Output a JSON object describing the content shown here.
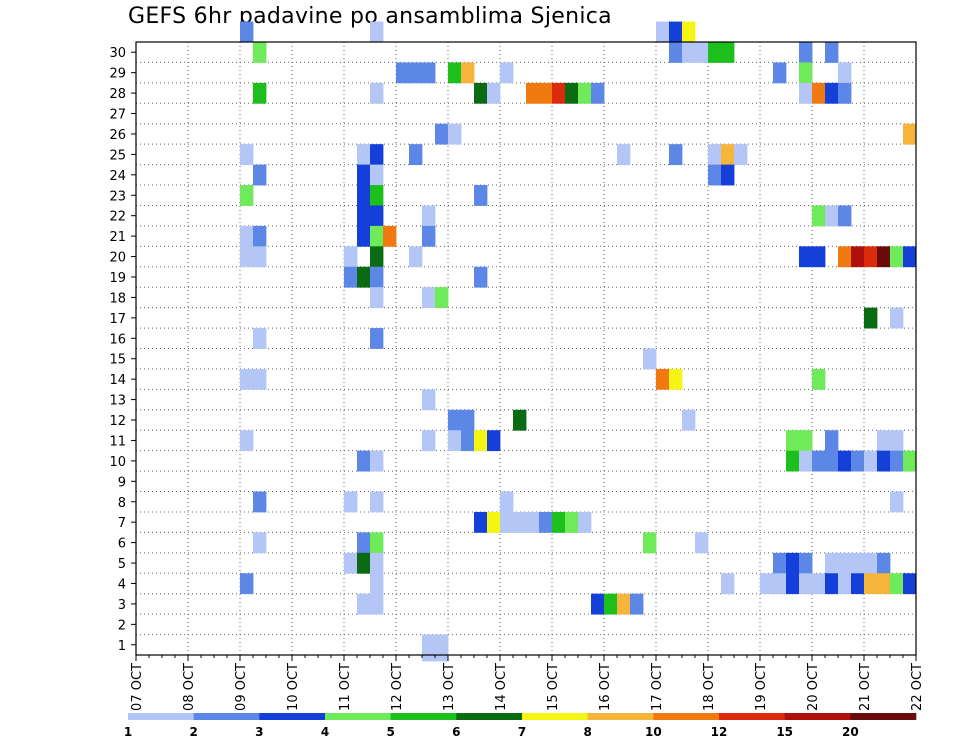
{
  "chart_data": {
    "type": "heatmap",
    "title": "GEFS 6hr padavine po ansamblima Sjenica",
    "xlabel": "",
    "ylabel": "",
    "y_categories": [
      "1",
      "2",
      "3",
      "4",
      "5",
      "6",
      "7",
      "8",
      "9",
      "10",
      "11",
      "12",
      "13",
      "14",
      "15",
      "16",
      "17",
      "18",
      "19",
      "20",
      "21",
      "22",
      "23",
      "24",
      "25",
      "26",
      "27",
      "28",
      "29",
      "30"
    ],
    "x_tick_labels": [
      "07 OCT",
      "08 OCT",
      "09 OCT",
      "10 OCT",
      "11 OCT",
      "12 OCT",
      "13 OCT",
      "14 OCT",
      "15 OCT",
      "16 OCT",
      "17 OCT",
      "18 OCT",
      "19 OCT",
      "20 OCT",
      "21 OCT",
      "22 OCT"
    ],
    "time_steps_per_day": 4,
    "n_time_steps": 60,
    "colorbar": {
      "tick_labels": [
        "1",
        "2",
        "3",
        "4",
        "5",
        "6",
        "7",
        "8",
        "10",
        "12",
        "15",
        "20"
      ],
      "colors": [
        "#b3c6f5",
        "#5c87e6",
        "#1440d9",
        "#6fea5a",
        "#1dbf1d",
        "#0b6b12",
        "#f5f514",
        "#f5b43a",
        "#f07a10",
        "#dc2a0c",
        "#b0100c",
        "#6b0a0a"
      ]
    },
    "cells": [
      [
        30,
        8,
        1
      ],
      [
        30,
        18,
        0
      ],
      [
        30,
        40,
        0
      ],
      [
        30,
        41,
        2
      ],
      [
        30,
        42,
        6
      ],
      [
        29,
        9,
        3
      ],
      [
        29,
        41,
        1
      ],
      [
        29,
        42,
        0
      ],
      [
        29,
        43,
        0
      ],
      [
        29,
        44,
        4
      ],
      [
        29,
        45,
        4
      ],
      [
        29,
        51,
        1
      ],
      [
        29,
        53,
        1
      ],
      [
        28,
        20,
        1
      ],
      [
        28,
        21,
        1
      ],
      [
        28,
        22,
        1
      ],
      [
        28,
        24,
        4
      ],
      [
        28,
        25,
        7
      ],
      [
        28,
        28,
        0
      ],
      [
        28,
        49,
        1
      ],
      [
        28,
        51,
        3
      ],
      [
        28,
        54,
        0
      ],
      [
        27,
        9,
        4
      ],
      [
        27,
        18,
        0
      ],
      [
        27,
        26,
        5
      ],
      [
        27,
        27,
        0
      ],
      [
        27,
        30,
        8
      ],
      [
        27,
        31,
        8
      ],
      [
        27,
        32,
        9
      ],
      [
        27,
        33,
        5
      ],
      [
        27,
        34,
        3
      ],
      [
        27,
        35,
        1
      ],
      [
        27,
        51,
        0
      ],
      [
        27,
        52,
        8
      ],
      [
        27,
        53,
        2
      ],
      [
        27,
        54,
        1
      ],
      [
        25,
        23,
        1
      ],
      [
        25,
        24,
        0
      ],
      [
        25,
        59,
        7
      ],
      [
        24,
        8,
        0
      ],
      [
        24,
        17,
        0
      ],
      [
        24,
        18,
        2
      ],
      [
        24,
        21,
        1
      ],
      [
        24,
        37,
        0
      ],
      [
        24,
        41,
        1
      ],
      [
        24,
        44,
        0
      ],
      [
        24,
        45,
        7
      ],
      [
        24,
        46,
        0
      ],
      [
        23,
        9,
        1
      ],
      [
        23,
        17,
        2
      ],
      [
        23,
        18,
        0
      ],
      [
        23,
        44,
        1
      ],
      [
        23,
        45,
        2
      ],
      [
        22,
        8,
        3
      ],
      [
        22,
        17,
        2
      ],
      [
        22,
        18,
        4
      ],
      [
        22,
        26,
        1
      ],
      [
        21,
        17,
        2
      ],
      [
        21,
        18,
        2
      ],
      [
        21,
        22,
        0
      ],
      [
        21,
        52,
        3
      ],
      [
        21,
        53,
        0
      ],
      [
        21,
        54,
        1
      ],
      [
        20,
        8,
        0
      ],
      [
        20,
        9,
        1
      ],
      [
        20,
        17,
        2
      ],
      [
        20,
        18,
        3
      ],
      [
        20,
        19,
        8
      ],
      [
        20,
        22,
        1
      ],
      [
        19,
        8,
        0
      ],
      [
        19,
        9,
        0
      ],
      [
        19,
        16,
        0
      ],
      [
        19,
        18,
        5
      ],
      [
        19,
        21,
        0
      ],
      [
        19,
        51,
        2
      ],
      [
        19,
        52,
        2
      ],
      [
        19,
        54,
        8
      ],
      [
        19,
        55,
        10
      ],
      [
        19,
        56,
        9
      ],
      [
        19,
        57,
        11
      ],
      [
        19,
        58,
        3
      ],
      [
        19,
        59,
        2
      ],
      [
        18,
        16,
        1
      ],
      [
        18,
        17,
        5
      ],
      [
        18,
        18,
        1
      ],
      [
        18,
        26,
        1
      ],
      [
        17,
        18,
        0
      ],
      [
        17,
        22,
        0
      ],
      [
        17,
        23,
        3
      ],
      [
        16,
        56,
        5
      ],
      [
        16,
        58,
        0
      ],
      [
        15,
        9,
        0
      ],
      [
        15,
        18,
        1
      ],
      [
        14,
        39,
        0
      ],
      [
        13,
        8,
        0
      ],
      [
        13,
        9,
        0
      ],
      [
        13,
        40,
        8
      ],
      [
        13,
        41,
        6
      ],
      [
        13,
        52,
        3
      ],
      [
        12,
        22,
        0
      ],
      [
        11,
        24,
        1
      ],
      [
        11,
        25,
        1
      ],
      [
        11,
        29,
        5
      ],
      [
        11,
        42,
        0
      ],
      [
        10,
        8,
        0
      ],
      [
        10,
        22,
        0
      ],
      [
        10,
        24,
        0
      ],
      [
        10,
        25,
        1
      ],
      [
        10,
        26,
        6
      ],
      [
        10,
        27,
        2
      ],
      [
        10,
        50,
        3
      ],
      [
        10,
        51,
        3
      ],
      [
        10,
        53,
        1
      ],
      [
        10,
        57,
        0
      ],
      [
        10,
        58,
        0
      ],
      [
        9,
        17,
        1
      ],
      [
        9,
        18,
        0
      ],
      [
        9,
        50,
        4
      ],
      [
        9,
        51,
        0
      ],
      [
        9,
        52,
        1
      ],
      [
        9,
        53,
        1
      ],
      [
        9,
        54,
        2
      ],
      [
        9,
        55,
        1
      ],
      [
        9,
        56,
        0
      ],
      [
        9,
        57,
        2
      ],
      [
        9,
        58,
        1
      ],
      [
        9,
        59,
        3
      ],
      [
        9,
        60,
        5
      ],
      [
        7,
        9,
        1
      ],
      [
        7,
        16,
        0
      ],
      [
        7,
        18,
        0
      ],
      [
        7,
        28,
        0
      ],
      [
        7,
        58,
        0
      ],
      [
        6,
        26,
        2
      ],
      [
        6,
        27,
        6
      ],
      [
        6,
        28,
        0
      ],
      [
        6,
        29,
        0
      ],
      [
        6,
        30,
        0
      ],
      [
        6,
        31,
        1
      ],
      [
        6,
        32,
        4
      ],
      [
        6,
        33,
        3
      ],
      [
        6,
        34,
        0
      ],
      [
        5,
        9,
        0
      ],
      [
        5,
        17,
        1
      ],
      [
        5,
        18,
        3
      ],
      [
        5,
        39,
        3
      ],
      [
        5,
        43,
        0
      ],
      [
        4,
        16,
        0
      ],
      [
        4,
        17,
        5
      ],
      [
        4,
        18,
        0
      ],
      [
        4,
        49,
        1
      ],
      [
        4,
        50,
        2
      ],
      [
        4,
        51,
        1
      ],
      [
        4,
        53,
        0
      ],
      [
        4,
        54,
        0
      ],
      [
        4,
        55,
        0
      ],
      [
        4,
        56,
        0
      ],
      [
        4,
        57,
        1
      ],
      [
        3,
        8,
        1
      ],
      [
        3,
        18,
        0
      ],
      [
        3,
        45,
        0
      ],
      [
        3,
        48,
        0
      ],
      [
        3,
        49,
        0
      ],
      [
        3,
        50,
        2
      ],
      [
        3,
        51,
        0
      ],
      [
        3,
        52,
        0
      ],
      [
        3,
        53,
        2
      ],
      [
        3,
        54,
        0
      ],
      [
        3,
        55,
        2
      ],
      [
        3,
        56,
        7
      ],
      [
        3,
        57,
        7
      ],
      [
        3,
        58,
        3
      ],
      [
        3,
        59,
        2
      ],
      [
        3,
        60,
        1
      ],
      [
        2,
        17,
        0
      ],
      [
        2,
        18,
        0
      ],
      [
        2,
        35,
        2
      ],
      [
        2,
        36,
        4
      ],
      [
        2,
        37,
        7
      ],
      [
        2,
        38,
        1
      ],
      [
        2,
        60,
        1
      ],
      [
        0,
        22,
        0
      ],
      [
        0,
        23,
        0
      ]
    ]
  }
}
